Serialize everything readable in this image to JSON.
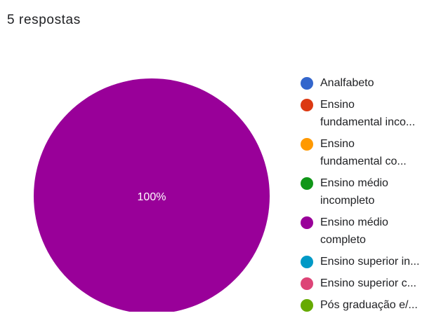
{
  "header": {
    "responses_label": "5 respostas"
  },
  "chart_data": {
    "type": "pie",
    "title": "",
    "labels": [
      "Analfabeto",
      "Ensino fundamental inco...",
      "Ensino fundamental co...",
      "Ensino médio incompleto",
      "Ensino médio completo",
      "Ensino superior in...",
      "Ensino superior c...",
      "Pós graduação e/..."
    ],
    "legend_display": [
      "Analfabeto",
      "Ensino\nfundamental inco...",
      "Ensino\nfundamental co...",
      "Ensino médio\nincompleto",
      "Ensino médio\ncompleto",
      "Ensino superior in...",
      "Ensino superior c...",
      "Pós graduação e/..."
    ],
    "values": [
      0,
      0,
      0,
      0,
      5,
      0,
      0,
      0
    ],
    "colors": [
      "#3366cc",
      "#dc3912",
      "#ff9900",
      "#109618",
      "#990099",
      "#0099c6",
      "#dd4477",
      "#66aa00"
    ],
    "slice_labels": [
      "",
      "",
      "",
      "",
      "100%",
      "",
      "",
      ""
    ],
    "legend_position": "right"
  }
}
